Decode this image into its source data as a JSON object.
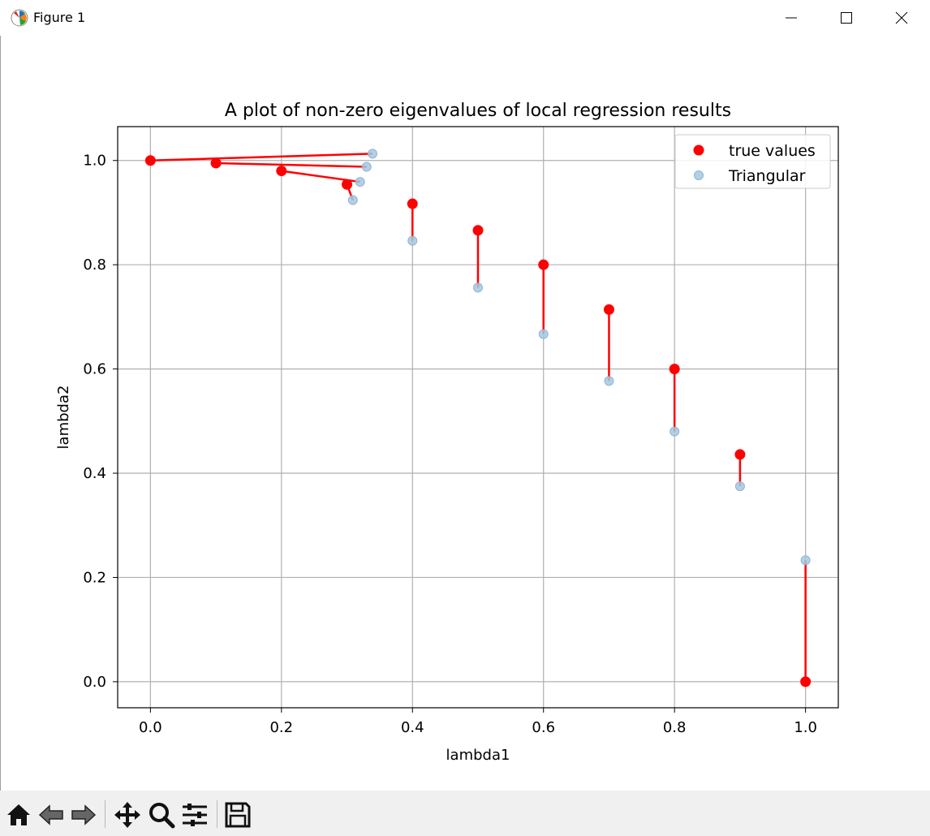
{
  "window": {
    "title": "Figure 1",
    "app_icon": "matplotlib-logo-icon",
    "controls": [
      "minimize-icon",
      "maximize-icon",
      "close-icon"
    ]
  },
  "toolbar": {
    "icons": [
      "home-icon",
      "back-arrow-icon",
      "forward-arrow-icon",
      "pan-move-icon",
      "zoom-magnifier-icon",
      "configure-subplots-icon",
      "save-floppy-icon"
    ]
  },
  "chart_data": {
    "type": "scatter",
    "title": "A plot of non-zero eigenvalues of local regression results",
    "xlabel": "lambda1",
    "ylabel": "lambda2",
    "xlim": [
      -0.05,
      1.05
    ],
    "ylim": [
      -0.05,
      1.065
    ],
    "xticks": [
      0.0,
      0.2,
      0.4,
      0.6,
      0.8,
      1.0
    ],
    "yticks": [
      0.0,
      0.2,
      0.4,
      0.6,
      0.8,
      1.0
    ],
    "xtick_labels": [
      "0.0",
      "0.2",
      "0.4",
      "0.6",
      "0.8",
      "1.0"
    ],
    "ytick_labels": [
      "0.0",
      "0.2",
      "0.4",
      "0.6",
      "0.8",
      "1.0"
    ],
    "grid": true,
    "legend_position": "top-right",
    "series": [
      {
        "name": "true values",
        "color": "#ff0000",
        "points": [
          [
            0.0,
            1.0
          ],
          [
            0.1,
            0.995
          ],
          [
            0.2,
            0.98
          ],
          [
            0.3,
            0.954
          ],
          [
            0.4,
            0.917
          ],
          [
            0.5,
            0.866
          ],
          [
            0.6,
            0.8
          ],
          [
            0.7,
            0.714
          ],
          [
            0.8,
            0.6
          ],
          [
            0.9,
            0.436
          ],
          [
            1.0,
            0.0
          ]
        ]
      },
      {
        "name": "Triangular",
        "color": "#a6c8e0",
        "points": [
          [
            0.339,
            1.013
          ],
          [
            0.33,
            0.988
          ],
          [
            0.32,
            0.959
          ],
          [
            0.309,
            0.924
          ],
          [
            0.4,
            0.846
          ],
          [
            0.5,
            0.756
          ],
          [
            0.6,
            0.667
          ],
          [
            0.7,
            0.577
          ],
          [
            0.8,
            0.48
          ],
          [
            0.9,
            0.375
          ],
          [
            1.0,
            0.233
          ]
        ]
      }
    ],
    "connector_color": "#ff0000"
  }
}
